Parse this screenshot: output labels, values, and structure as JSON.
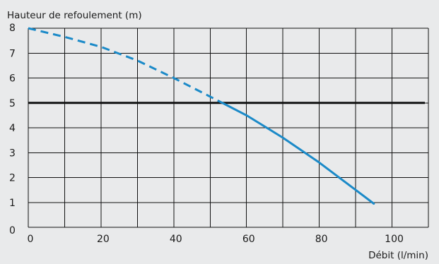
{
  "chart_data": {
    "type": "line",
    "ylabel": "Hauteur de refoulement (m)",
    "xlabel": "Débit (l/min)",
    "xlim": [
      0,
      110
    ],
    "ylim": [
      0,
      8
    ],
    "x_ticks": [
      0,
      20,
      40,
      60,
      80,
      100
    ],
    "y_ticks": [
      0,
      1,
      2,
      3,
      4,
      5,
      6,
      7,
      8
    ],
    "grid": true,
    "x_grid_step": 10,
    "y_grid_step": 1,
    "reference_line": {
      "y": 5,
      "color": "#111111"
    },
    "series": [
      {
        "color": "#1b8ac8",
        "dashed_until_x": 54,
        "points": [
          [
            0,
            8.0
          ],
          [
            10,
            7.65
          ],
          [
            20,
            7.25
          ],
          [
            30,
            6.7
          ],
          [
            40,
            6.0
          ],
          [
            50,
            5.25
          ],
          [
            54,
            4.95
          ],
          [
            60,
            4.5
          ],
          [
            70,
            3.6
          ],
          [
            80,
            2.6
          ],
          [
            90,
            1.5
          ],
          [
            95,
            0.95
          ]
        ]
      }
    ]
  },
  "colors": {
    "background": "#e9eaeb",
    "grid": "#111111",
    "series": "#1b8ac8"
  }
}
